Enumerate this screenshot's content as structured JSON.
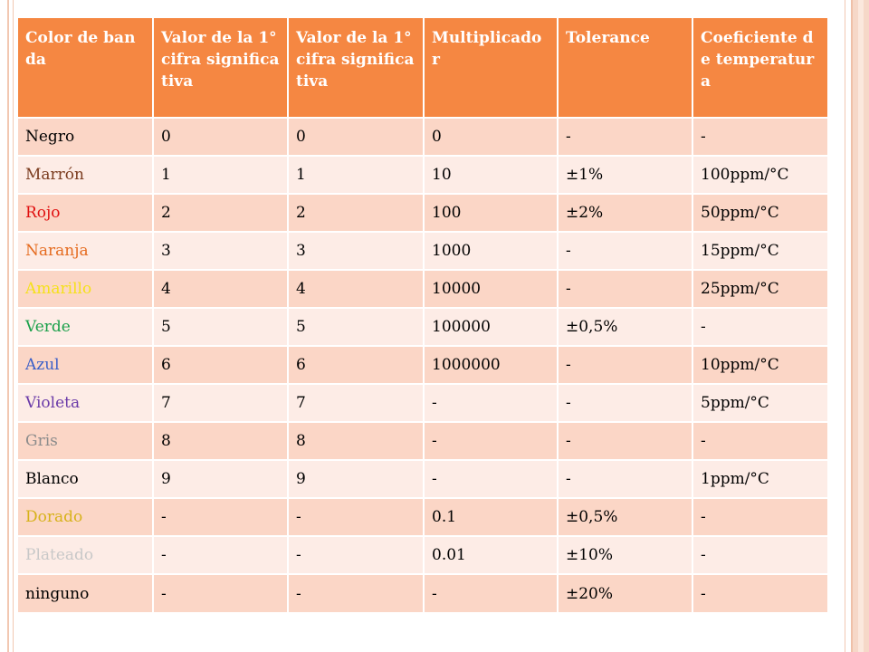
{
  "table": {
    "headers": [
      "Color de banda",
      "Valor de la 1°cifra significativa",
      "Valor de la 1°cifra significativa",
      "Multiplicador",
      "Tolerance",
      "Coeficiente de temperatura"
    ],
    "rows": [
      {
        "color": "Negro",
        "color_hex": "#000000",
        "d1": "0",
        "d2": "0",
        "mult": "0",
        "tol": "-",
        "coef": "-"
      },
      {
        "color": "Marrón",
        "color_hex": "#7a3b1e",
        "d1": "1",
        "d2": "1",
        "mult": "10",
        "tol": "±1%",
        "coef": "100ppm/°C"
      },
      {
        "color": "Rojo",
        "color_hex": "#e01010",
        "d1": "2",
        "d2": "2",
        "mult": "100",
        "tol": "±2%",
        "coef": "50ppm/°C"
      },
      {
        "color": "Naranja",
        "color_hex": "#e56b1f",
        "d1": "3",
        "d2": "3",
        "mult": "1000",
        "tol": "-",
        "coef": "15ppm/°C"
      },
      {
        "color": "Amarillo",
        "color_hex": "#f5e11a",
        "d1": "4",
        "d2": "4",
        "mult": "10000",
        "tol": "-",
        "coef": "25ppm/°C"
      },
      {
        "color": "Verde",
        "color_hex": "#1aa04a",
        "d1": "5",
        "d2": "5",
        "mult": "100000",
        "tol": "±0,5%",
        "coef": "-"
      },
      {
        "color": "Azul",
        "color_hex": "#3a5fc8",
        "d1": "6",
        "d2": "6",
        "mult": "1000000",
        "tol": "-",
        "coef": "10ppm/°C"
      },
      {
        "color": "Violeta",
        "color_hex": "#6a3aa8",
        "d1": "7",
        "d2": "7",
        "mult": "-",
        "tol": "-",
        "coef": "5ppm/°C"
      },
      {
        "color": "Gris",
        "color_hex": "#8c8c8c",
        "d1": "8",
        "d2": "8",
        "mult": "-",
        "tol": "-",
        "coef": "-"
      },
      {
        "color": "Blanco",
        "color_hex": "#000000",
        "d1": "9",
        "d2": "9",
        "mult": "-",
        "tol": "-",
        "coef": "1ppm/°C"
      },
      {
        "color": "Dorado",
        "color_hex": "#d7b21a",
        "d1": "-",
        "d2": "-",
        "mult": "0.1",
        "tol": "±0,5%",
        "coef": "-"
      },
      {
        "color": "Plateado",
        "color_hex": "#c8c8c8",
        "d1": "-",
        "d2": "-",
        "mult": "0.01",
        "tol": "±10%",
        "coef": "-"
      },
      {
        "color": "ninguno",
        "color_hex": "#000000",
        "d1": "-",
        "d2": "-",
        "mult": "-",
        "tol": "±20%",
        "coef": "-"
      }
    ]
  },
  "colors": {
    "header_bg": "#f58742",
    "row_odd": "#fbd6c6",
    "row_even": "#fdece6"
  }
}
